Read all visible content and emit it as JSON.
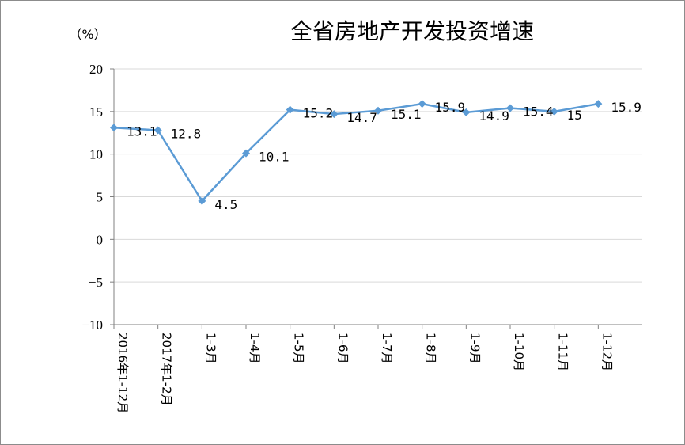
{
  "chart_data": {
    "type": "line",
    "title": "全省房地产开发投资增速",
    "ylabel": "（%）",
    "xlabel": "",
    "ylim": [
      -10,
      20
    ],
    "yticks": [
      "20",
      "15",
      "10",
      "5",
      "0",
      "−5",
      "−10"
    ],
    "ytick_values": [
      20,
      15,
      10,
      5,
      0,
      -5,
      -10
    ],
    "grid": true,
    "legend": "none",
    "line_color": "#5B9BD5",
    "grid_color": "#d9d9d9",
    "categories": [
      "2016年1-12月",
      "2017年1-2月",
      "1-3月",
      "1-4月",
      "1-5月",
      "1-6月",
      "1-7月",
      "1-8月",
      "1-9月",
      "1-10月",
      "1-11月",
      "1-12月"
    ],
    "values": [
      13.1,
      12.8,
      4.5,
      10.1,
      15.2,
      14.7,
      15.1,
      15.9,
      14.9,
      15.4,
      15,
      15.9
    ],
    "data_labels": [
      "13.1",
      "12.8",
      "4.5",
      "10.1",
      "15.2",
      "14.7",
      "15.1",
      "15.9",
      "14.9",
      "15.4",
      "15",
      "15.9"
    ]
  }
}
